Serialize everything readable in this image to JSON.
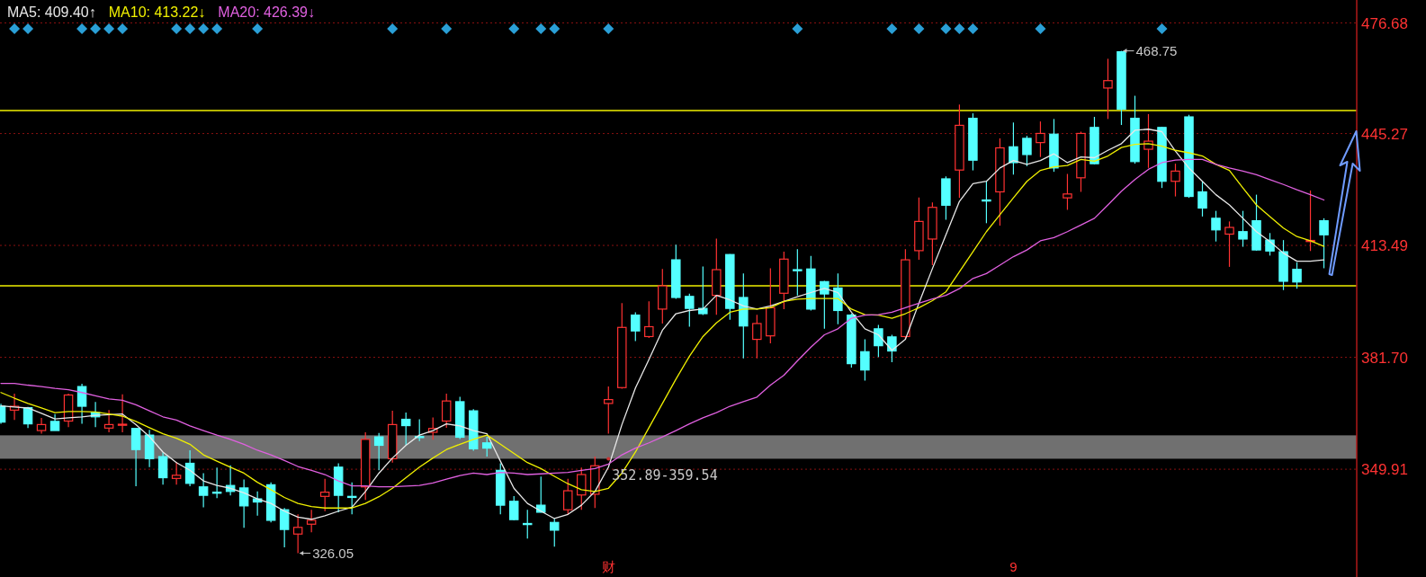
{
  "chart_data": {
    "type": "candlestick",
    "categories": [
      null,
      null,
      null,
      null,
      null,
      null,
      null,
      null,
      null,
      null,
      null,
      null,
      null,
      null,
      null,
      null,
      null,
      null,
      null,
      null,
      null,
      null,
      null,
      null,
      null,
      null,
      null,
      null,
      null,
      null,
      null,
      null,
      null,
      null,
      null,
      null,
      null,
      null,
      null,
      null,
      null,
      null,
      null,
      null,
      null,
      "财",
      null,
      null,
      null,
      null,
      null,
      null,
      null,
      null,
      null,
      null,
      null,
      null,
      null,
      null,
      null,
      null,
      null,
      null,
      null,
      null,
      null,
      null,
      null,
      null,
      null,
      null,
      null,
      null,
      null,
      "9",
      null,
      null,
      null,
      null,
      null,
      null,
      null,
      null,
      null,
      null,
      null,
      null,
      null,
      null,
      null,
      null,
      null,
      null,
      null,
      null,
      null,
      null,
      null
    ],
    "ohlc": [
      [
        367.8,
        368.5,
        362.8,
        363.3
      ],
      [
        366.7,
        371.4,
        363.9,
        367.8
      ],
      [
        367.4,
        367.6,
        361.6,
        362.8
      ],
      [
        360.9,
        364.5,
        360.0,
        362.6
      ],
      [
        363.5,
        365.6,
        360.9,
        360.9
      ],
      [
        363.6,
        371.4,
        361.9,
        371.0
      ],
      [
        373.4,
        374.2,
        362.8,
        367.8
      ],
      [
        366.0,
        369.0,
        361.9,
        364.8
      ],
      [
        361.6,
        366.7,
        360.4,
        362.6
      ],
      [
        362.5,
        371.2,
        360.4,
        362.7
      ],
      [
        361.5,
        361.5,
        345.1,
        355.5
      ],
      [
        359.6,
        361.1,
        350.5,
        352.9
      ],
      [
        353.5,
        354.7,
        345.5,
        347.5
      ],
      [
        347.3,
        352.0,
        345.5,
        348.2
      ],
      [
        351.6,
        355.3,
        345.1,
        345.9
      ],
      [
        344.9,
        348.8,
        339.1,
        342.5
      ],
      [
        343.4,
        350.4,
        341.7,
        343.3
      ],
      [
        345.3,
        351.0,
        342.5,
        343.6
      ],
      [
        344.6,
        347.0,
        333.3,
        339.5
      ],
      [
        341.5,
        343.6,
        336.7,
        340.6
      ],
      [
        345.5,
        346.2,
        334.8,
        335.4
      ],
      [
        338.4,
        338.9,
        327.7,
        332.8
      ],
      [
        331.5,
        337.1,
        326.05,
        333.4
      ],
      [
        334.3,
        338.4,
        332.0,
        335.4
      ],
      [
        342.2,
        347.2,
        338.0,
        343.4
      ],
      [
        350.5,
        351.6,
        337.7,
        342.5
      ],
      [
        342.2,
        346.2,
        337.1,
        342.1
      ],
      [
        344.9,
        360.4,
        341.2,
        358.4
      ],
      [
        359.1,
        360.2,
        349.6,
        356.7
      ],
      [
        352.9,
        366.5,
        351.8,
        362.6
      ],
      [
        364.1,
        366.0,
        356.7,
        362.3
      ],
      [
        359.2,
        364.1,
        357.9,
        359.1
      ],
      [
        360.4,
        364.6,
        358.3,
        361.5
      ],
      [
        363.6,
        371.4,
        361.7,
        369.3
      ],
      [
        369.1,
        370.5,
        358.5,
        359.0
      ],
      [
        366.5,
        367.0,
        355.2,
        355.7
      ],
      [
        357.4,
        359.1,
        353.5,
        355.9
      ],
      [
        349.6,
        351.6,
        337.1,
        339.7
      ],
      [
        340.8,
        342.3,
        335.4,
        335.6
      ],
      [
        334.5,
        338.4,
        330.2,
        334.4
      ],
      [
        339.7,
        347.8,
        337.6,
        337.7
      ],
      [
        334.8,
        335.8,
        327.9,
        332.6
      ],
      [
        338.4,
        347.2,
        336.9,
        343.8
      ],
      [
        342.6,
        350.4,
        338.4,
        348.4
      ],
      [
        342.8,
        353.5,
        338.9,
        350.9
      ],
      [
        368.6,
        373.4,
        360.0,
        369.7
      ],
      [
        373.1,
        397.1,
        372.8,
        390.2
      ],
      [
        393.7,
        394.5,
        386.3,
        389.2
      ],
      [
        387.6,
        397.6,
        387.2,
        390.4
      ],
      [
        395.4,
        406.8,
        391.3,
        402.0
      ],
      [
        409.4,
        413.7,
        398.3,
        398.7
      ],
      [
        399.0,
        399.8,
        390.4,
        395.6
      ],
      [
        395.6,
        407.5,
        393.7,
        394.1
      ],
      [
        399.3,
        415.4,
        393.8,
        406.6
      ],
      [
        410.9,
        411.0,
        392.4,
        395.6
      ],
      [
        398.7,
        405.5,
        381.4,
        390.6
      ],
      [
        386.8,
        393.8,
        381.4,
        391.3
      ],
      [
        387.8,
        407.0,
        385.7,
        395.8
      ],
      [
        399.9,
        411.7,
        395.4,
        409.6
      ],
      [
        406.6,
        412.4,
        399.3,
        406.5
      ],
      [
        406.8,
        410.5,
        395.0,
        395.4
      ],
      [
        403.2,
        403.4,
        389.8,
        399.7
      ],
      [
        401.4,
        405.5,
        391.1,
        395.0
      ],
      [
        393.7,
        394.1,
        378.8,
        379.9
      ],
      [
        383.3,
        386.8,
        375.1,
        378.1
      ],
      [
        389.8,
        390.9,
        381.8,
        385.0
      ],
      [
        387.5,
        388.1,
        380.3,
        383.5
      ],
      [
        387.6,
        412.4,
        387.0,
        409.4
      ],
      [
        412.0,
        427.1,
        409.4,
        420.3
      ],
      [
        415.3,
        425.7,
        407.9,
        424.3
      ],
      [
        432.4,
        433.1,
        420.8,
        424.9
      ],
      [
        434.9,
        453.5,
        427.0,
        447.6
      ],
      [
        449.6,
        451.0,
        434.8,
        437.7
      ],
      [
        426.4,
        431.7,
        419.8,
        426.3
      ],
      [
        428.7,
        443.9,
        419.1,
        441.2
      ],
      [
        441.5,
        448.4,
        433.6,
        437.0
      ],
      [
        443.9,
        444.6,
        436.0,
        439.3
      ],
      [
        442.7,
        448.7,
        438.6,
        445.3
      ],
      [
        445.1,
        449.4,
        434.4,
        435.5
      ],
      [
        427.0,
        433.8,
        423.6,
        428.1
      ],
      [
        432.7,
        445.8,
        428.7,
        445.3
      ],
      [
        447.0,
        450.0,
        436.5,
        436.7
      ],
      [
        458.2,
        466.5,
        449.4,
        460.3
      ],
      [
        468.5,
        468.75,
        447.7,
        452.2
      ],
      [
        449.6,
        456.0,
        436.7,
        437.3
      ],
      [
        440.8,
        450.8,
        435.5,
        443.1
      ],
      [
        447.0,
        447.2,
        429.8,
        431.7
      ],
      [
        431.7,
        436.7,
        427.4,
        434.6
      ],
      [
        450.0,
        450.6,
        427.0,
        427.4
      ],
      [
        428.7,
        431.7,
        421.7,
        424.1
      ],
      [
        421.2,
        423.3,
        414.6,
        417.9
      ],
      [
        416.7,
        420.3,
        407.4,
        418.6
      ],
      [
        417.4,
        423.3,
        413.1,
        415.3
      ],
      [
        420.5,
        427.9,
        412.0,
        412.2
      ],
      [
        415.0,
        417.0,
        410.6,
        411.9
      ],
      [
        411.7,
        415.0,
        400.8,
        403.3
      ],
      [
        406.7,
        408.7,
        401.2,
        403.1
      ],
      [
        414.6,
        429.1,
        411.9,
        414.9
      ],
      [
        420.5,
        421.2,
        407.0,
        416.5
      ]
    ],
    "colors": [
      "#54ffff",
      "#ff3232",
      "#54ffff",
      "#ff3232",
      "#54ffff",
      "#ff3232",
      "#54ffff",
      "#54ffff",
      "#ff3232",
      "#ff3232",
      "#54ffff",
      "#54ffff",
      "#54ffff",
      "#ff3232",
      "#54ffff",
      "#54ffff",
      "#54ffff",
      "#54ffff",
      "#54ffff",
      "#54ffff",
      "#54ffff",
      "#54ffff",
      "#ff3232",
      "#ff3232",
      "#ff3232",
      "#54ffff",
      "#54ffff",
      "#ff3232",
      "#54ffff",
      "#ff3232",
      "#54ffff",
      "#54ffff",
      "#ff3232",
      "#ff3232",
      "#54ffff",
      "#54ffff",
      "#54ffff",
      "#54ffff",
      "#54ffff",
      "#54ffff",
      "#54ffff",
      "#54ffff",
      "#ff3232",
      "#ff3232",
      "#ff3232",
      "#ff3232",
      "#ff3232",
      "#54ffff",
      "#ff3232",
      "#ff3232",
      "#54ffff",
      "#54ffff",
      "#54ffff",
      "#ff3232",
      "#54ffff",
      "#54ffff",
      "#ff3232",
      "#ff3232",
      "#ff3232",
      "#54ffff",
      "#54ffff",
      "#54ffff",
      "#54ffff",
      "#54ffff",
      "#54ffff",
      "#54ffff",
      "#54ffff",
      "#ff3232",
      "#ff3232",
      "#ff3232",
      "#54ffff",
      "#ff3232",
      "#54ffff",
      "#54ffff",
      "#ff3232",
      "#54ffff",
      "#54ffff",
      "#ff3232",
      "#54ffff",
      "#ff3232",
      "#ff3232",
      "#54ffff",
      "#ff3232",
      "#54ffff",
      "#54ffff",
      "#ff3232",
      "#54ffff",
      "#ff3232",
      "#54ffff",
      "#54ffff",
      "#54ffff",
      "#ff3232",
      "#54ffff",
      "#54ffff",
      "#54ffff",
      "#54ffff",
      "#54ffff",
      "#ff3232",
      "#54ffff"
    ],
    "series": [
      {
        "name": "MA5: 409.40↑",
        "type": "line",
        "color": "#e8e8e8",
        "values": [
          367.9,
          367.6,
          367.3,
          365.8,
          364.2,
          364.5,
          364.8,
          365.2,
          365.4,
          365.6,
          362.6,
          359.2,
          354.8,
          351.8,
          349.6,
          346.6,
          345.3,
          344.5,
          343.2,
          341.5,
          340.2,
          338.0,
          336.3,
          335.7,
          336.7,
          338.0,
          339.1,
          343.6,
          348.8,
          353.1,
          356.7,
          359.6,
          360.9,
          362.8,
          362.2,
          360.9,
          360.0,
          352.2,
          344.5,
          340.2,
          338.0,
          335.9,
          337.1,
          339.7,
          343.6,
          350.5,
          362.6,
          373.0,
          381.1,
          389.4,
          394.1,
          395.0,
          395.4,
          399.3,
          398.0,
          396.3,
          395.4,
          396.3,
          397.6,
          398.9,
          400.1,
          401.3,
          400.1,
          394.5,
          389.8,
          388.1,
          383.7,
          386.8,
          397.1,
          406.9,
          416.5,
          426.0,
          431.0,
          431.7,
          435.5,
          437.6,
          436.5,
          437.6,
          439.5,
          437.0,
          438.6,
          438.4,
          440.5,
          442.4,
          446.2,
          446.5,
          445.8,
          440.3,
          435.5,
          431.7,
          427.9,
          425.0,
          421.2,
          417.4,
          414.6,
          411.3,
          409.0,
          409.0,
          409.4
        ]
      },
      {
        "name": "MA10: 413.22↓",
        "type": "line",
        "color": "#f0f000",
        "values": [
          371.7,
          370.1,
          368.6,
          367.3,
          366.0,
          366.3,
          366.3,
          366.2,
          365.6,
          365.0,
          363.5,
          361.7,
          360.0,
          358.7,
          357.0,
          354.0,
          352.2,
          350.5,
          348.8,
          346.2,
          344.1,
          341.9,
          340.2,
          339.3,
          338.9,
          338.9,
          338.9,
          340.2,
          342.1,
          344.5,
          347.5,
          350.5,
          353.1,
          355.5,
          357.0,
          358.4,
          359.6,
          357.0,
          354.4,
          351.8,
          350.1,
          347.9,
          345.8,
          344.1,
          343.6,
          344.5,
          348.8,
          354.8,
          361.7,
          368.6,
          375.5,
          382.0,
          387.6,
          391.5,
          394.5,
          395.4,
          395.4,
          395.8,
          397.6,
          398.2,
          398.4,
          398.4,
          398.4,
          395.4,
          393.8,
          393.7,
          392.8,
          394.1,
          395.8,
          397.8,
          400.3,
          406.0,
          411.7,
          417.4,
          422.2,
          427.0,
          431.7,
          434.8,
          435.8,
          436.2,
          437.9,
          437.4,
          438.9,
          441.3,
          442.2,
          442.4,
          441.7,
          440.5,
          439.8,
          438.9,
          436.5,
          434.8,
          429.8,
          425.0,
          421.7,
          418.4,
          416.0,
          414.8,
          413.2
        ]
      },
      {
        "name": "MA20: 426.39↓",
        "type": "line",
        "color": "#e060e0",
        "values": [
          374.3,
          374.3,
          373.8,
          373.4,
          372.9,
          372.5,
          371.7,
          370.8,
          369.9,
          369.5,
          368.2,
          366.5,
          364.8,
          363.9,
          362.2,
          360.9,
          359.6,
          358.4,
          357.0,
          355.3,
          354.0,
          352.4,
          350.7,
          349.6,
          348.4,
          346.6,
          345.2,
          345.2,
          344.9,
          344.9,
          345.1,
          345.3,
          346.0,
          347.1,
          348.1,
          348.8,
          348.4,
          349.0,
          348.8,
          348.4,
          348.6,
          348.8,
          349.0,
          349.6,
          350.1,
          351.4,
          354.0,
          355.9,
          357.4,
          359.1,
          360.9,
          362.8,
          364.5,
          366.0,
          367.8,
          369.1,
          370.4,
          373.8,
          376.6,
          380.7,
          384.6,
          388.1,
          389.8,
          392.8,
          393.7,
          393.8,
          394.5,
          395.8,
          397.1,
          398.3,
          399.3,
          401.2,
          404.1,
          405.5,
          407.9,
          410.3,
          412.2,
          414.8,
          415.7,
          417.4,
          419.3,
          421.2,
          425.0,
          428.9,
          432.2,
          435.1,
          437.0,
          437.7,
          437.9,
          437.9,
          436.5,
          435.5,
          434.6,
          433.6,
          432.2,
          430.8,
          429.3,
          427.9,
          426.4
        ]
      },
      {
        "type": "scatter",
        "marker": "diamond",
        "color": "#2a9fd6",
        "values": [
          null,
          475.0,
          475.0,
          null,
          null,
          null,
          475.0,
          475.0,
          475.0,
          475.0,
          null,
          null,
          null,
          475.0,
          475.0,
          475.0,
          475.0,
          null,
          null,
          475.0,
          null,
          null,
          null,
          null,
          null,
          null,
          null,
          null,
          null,
          475.0,
          null,
          null,
          null,
          475.0,
          null,
          null,
          null,
          null,
          475.0,
          null,
          475.0,
          475.0,
          null,
          null,
          null,
          475.0,
          null,
          null,
          null,
          null,
          null,
          null,
          null,
          null,
          null,
          null,
          null,
          null,
          null,
          475.0,
          null,
          null,
          null,
          null,
          null,
          null,
          475.0,
          null,
          475.0,
          null,
          475.0,
          475.0,
          475.0,
          null,
          null,
          null,
          null,
          475.0,
          null,
          null,
          null,
          null,
          null,
          null,
          null,
          null,
          475.0,
          null,
          null,
          null,
          null,
          null,
          null,
          null,
          null,
          null,
          null,
          null,
          null
        ]
      }
    ],
    "ylim": [
      319.3,
      483.2
    ],
    "yticks": [
      {
        "value": 349.91,
        "label": "349.91"
      },
      {
        "value": 381.7,
        "label": "381.70"
      },
      {
        "value": 413.49,
        "label": "413.49"
      },
      {
        "value": 445.27,
        "label": "445.27"
      },
      {
        "value": 476.68,
        "label": "476.68"
      }
    ],
    "grid": "y",
    "legend": "top left",
    "ref_lines": [
      {
        "axis": "y",
        "value": 451.8,
        "color": "#f0f000"
      },
      {
        "axis": "y",
        "value": 402.0,
        "color": "#f0f000"
      }
    ],
    "bands": [
      {
        "axis": "y",
        "from": 352.89,
        "to": 359.54,
        "color": "#707070"
      }
    ],
    "annotations": [
      "468.75",
      "326.05",
      {
        "text": "352.89-359.54",
        "x": "财",
        "y": 352.89
      }
    ]
  }
}
